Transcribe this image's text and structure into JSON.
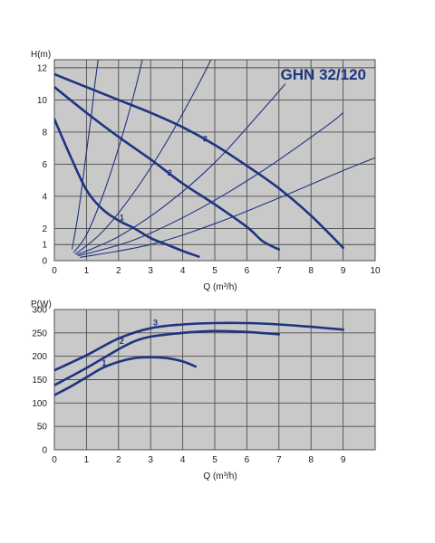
{
  "colors": {
    "plot_background": "#c9c9c9",
    "grid": "#4d4d4d",
    "curve": "#1f3480",
    "title": "#1f3480"
  },
  "chart_data": [
    {
      "type": "line",
      "title": "GHN 32/120",
      "ylabel": "H(m)",
      "xlabel": "Q (m³/h)",
      "xlim": [
        0,
        10
      ],
      "ylim": [
        0,
        12.5
      ],
      "xticks": [
        0,
        1,
        2,
        3,
        4,
        5,
        6,
        7,
        8,
        9,
        10
      ],
      "yticks": [
        0,
        1,
        2,
        4,
        6,
        8,
        10,
        12
      ],
      "grid": true,
      "series": [
        {
          "name": "1",
          "label_at": [
            2.1,
            2.5
          ],
          "points": [
            [
              0,
              8.8
            ],
            [
              0.5,
              6.5
            ],
            [
              1,
              4.4
            ],
            [
              1.5,
              3.2
            ],
            [
              2,
              2.5
            ],
            [
              2.5,
              2.0
            ],
            [
              3,
              1.4
            ],
            [
              3.5,
              1.0
            ],
            [
              4,
              0.6
            ],
            [
              4.5,
              0.25
            ]
          ]
        },
        {
          "name": "2",
          "label_at": [
            3.6,
            5.3
          ],
          "points": [
            [
              0,
              10.8
            ],
            [
              1,
              9.2
            ],
            [
              2,
              7.7
            ],
            [
              3,
              6.3
            ],
            [
              4,
              4.8
            ],
            [
              5,
              3.5
            ],
            [
              6,
              2.1
            ],
            [
              6.5,
              1.2
            ],
            [
              7,
              0.7
            ]
          ]
        },
        {
          "name": "3",
          "label_at": [
            4.7,
            7.4
          ],
          "points": [
            [
              0,
              11.6
            ],
            [
              1,
              10.8
            ],
            [
              2,
              10.0
            ],
            [
              3,
              9.2
            ],
            [
              4,
              8.3
            ],
            [
              5,
              7.2
            ],
            [
              6,
              5.9
            ],
            [
              7,
              4.5
            ],
            [
              8,
              2.8
            ],
            [
              9,
              0.8
            ]
          ]
        }
      ],
      "system_curves": [
        {
          "points": [
            [
              0.55,
              0.7
            ],
            [
              0.75,
              3
            ],
            [
              0.95,
              6
            ],
            [
              1.15,
              9
            ],
            [
              1.25,
              10.8
            ],
            [
              1.4,
              13
            ]
          ]
        },
        {
          "points": [
            [
              0.6,
              0.5
            ],
            [
              1,
              1.6
            ],
            [
              1.5,
              4
            ],
            [
              2,
              7
            ],
            [
              2.5,
              10.5
            ],
            [
              2.8,
              13
            ]
          ]
        },
        {
          "points": [
            [
              0.65,
              0.4
            ],
            [
              1.5,
              1.8
            ],
            [
              2.5,
              4.3
            ],
            [
              3.5,
              7.4
            ],
            [
              4.5,
              11
            ],
            [
              5,
              13
            ]
          ]
        },
        {
          "points": [
            [
              0.7,
              0.35
            ],
            [
              2,
              1.5
            ],
            [
              3.5,
              3.5
            ],
            [
              5,
              6.1
            ],
            [
              6.5,
              9.4
            ],
            [
              7.2,
              11
            ]
          ]
        },
        {
          "points": [
            [
              0.75,
              0.3
            ],
            [
              2.5,
              1.3
            ],
            [
              4.5,
              3.2
            ],
            [
              6.5,
              5.6
            ],
            [
              8.5,
              8.4
            ],
            [
              9,
              9.2
            ]
          ]
        },
        {
          "points": [
            [
              0.8,
              0.2
            ],
            [
              3,
              1.0
            ],
            [
              5,
              2.3
            ],
            [
              7,
              3.9
            ],
            [
              9,
              5.6
            ],
            [
              10,
              6.4
            ]
          ]
        }
      ]
    },
    {
      "type": "line",
      "title": "",
      "ylabel": "P(W)",
      "xlabel": "Q (m³/h)",
      "xlim": [
        0,
        10
      ],
      "ylim": [
        0,
        300
      ],
      "xticks": [
        0,
        1,
        2,
        3,
        4,
        5,
        6,
        7,
        8,
        9
      ],
      "yticks": [
        0,
        50,
        100,
        150,
        200,
        250,
        300
      ],
      "grid": true,
      "series": [
        {
          "name": "1",
          "label_at": [
            1.55,
            180
          ],
          "points": [
            [
              0,
              117
            ],
            [
              0.5,
              135
            ],
            [
              1,
              155
            ],
            [
              1.5,
              175
            ],
            [
              2,
              188
            ],
            [
              2.5,
              196
            ],
            [
              3,
              198
            ],
            [
              3.5,
              196
            ],
            [
              4,
              189
            ],
            [
              4.4,
              178
            ]
          ]
        },
        {
          "name": "2",
          "label_at": [
            2.1,
            226
          ],
          "points": [
            [
              0,
              138
            ],
            [
              1,
              175
            ],
            [
              2,
              215
            ],
            [
              2.5,
              232
            ],
            [
              3,
              242
            ],
            [
              4,
              250
            ],
            [
              5,
              254
            ],
            [
              6,
              252
            ],
            [
              7,
              247
            ]
          ]
        },
        {
          "name": "3",
          "label_at": [
            3.15,
            266
          ],
          "points": [
            [
              0,
              170
            ],
            [
              1,
              202
            ],
            [
              2,
              238
            ],
            [
              3,
              260
            ],
            [
              4,
              268
            ],
            [
              5,
              271
            ],
            [
              6,
              271
            ],
            [
              7,
              268
            ],
            [
              8,
              263
            ],
            [
              9,
              257
            ]
          ]
        }
      ]
    }
  ]
}
